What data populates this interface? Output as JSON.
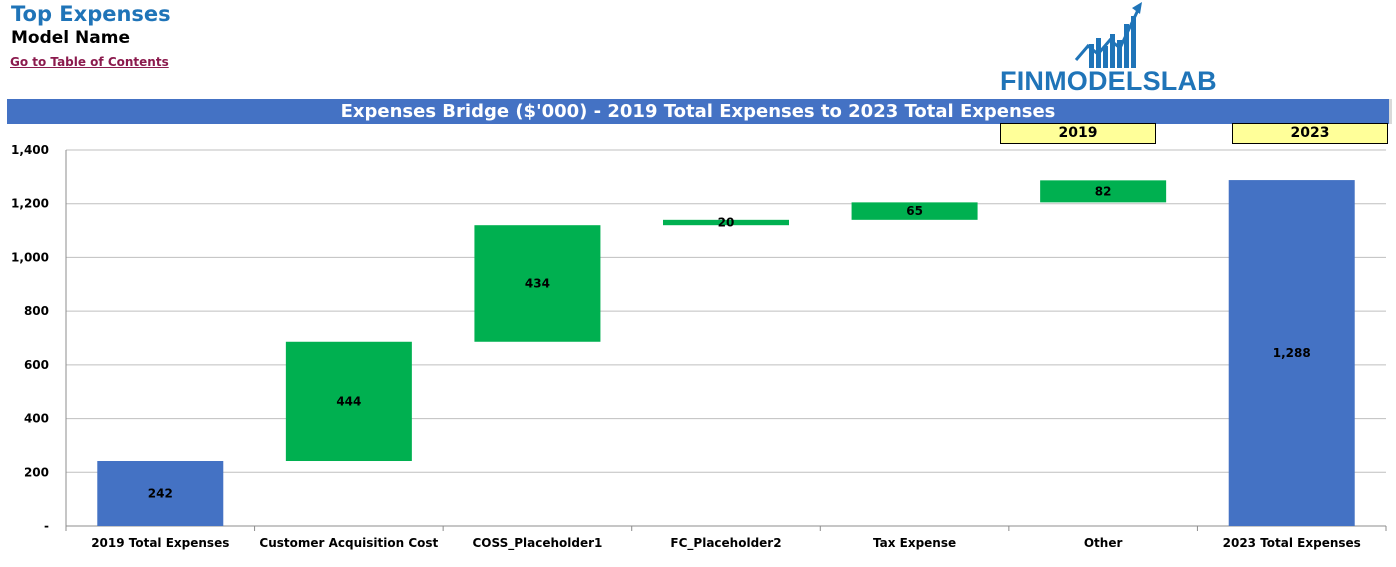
{
  "header": {
    "title": "Top Expenses",
    "model_name": "Model Name",
    "toc_link": "Go to Table of Contents",
    "logo_text": "FINMODELSLAB",
    "banner": "Expenses Bridge ($'000) - 2019 Total Expenses to 2023 Total Expenses",
    "year_start": "2019",
    "year_end": "2023"
  },
  "colors": {
    "total": "#4472c4",
    "increase": "#00b050",
    "banner": "#4472c4",
    "year_box": "#ffff99",
    "title": "#1f74b8",
    "link": "#8b1a4d"
  },
  "chart_data": {
    "type": "bar",
    "subtype": "waterfall",
    "categories": [
      "2019 Total Expenses",
      "Customer Acquisition Cost",
      "COSS_Placeholder1",
      "FC_Placeholder2",
      "Tax Expense",
      "Other",
      "2023 Total Expenses"
    ],
    "values": [
      242,
      444,
      434,
      20,
      65,
      82,
      1288
    ],
    "labels": [
      "242",
      "444",
      "434",
      "20",
      "65",
      "82",
      "1,288"
    ],
    "kinds": [
      "total",
      "increase",
      "increase",
      "increase",
      "increase",
      "increase",
      "total"
    ],
    "ylim": [
      0,
      1400
    ],
    "yticks": [
      0,
      200,
      400,
      600,
      800,
      1000,
      1200,
      1400
    ],
    "ytick_labels": [
      "-",
      "200",
      "400",
      "600",
      "800",
      "1,000",
      "1,200",
      "1,400"
    ],
    "grid": true,
    "legend": "none"
  }
}
